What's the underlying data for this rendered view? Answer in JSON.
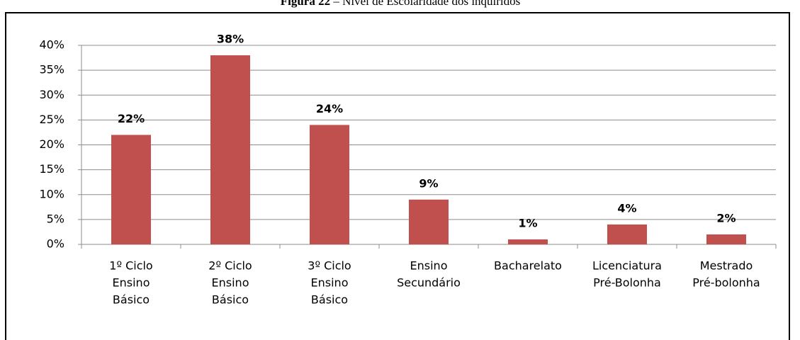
{
  "chart_data": {
    "type": "bar",
    "title": {
      "label": "Figura 22",
      "text": "– Nível de Escolaridade dos inquiridos"
    },
    "categories": [
      [
        "1º Ciclo",
        "Ensino",
        "Básico"
      ],
      [
        "2º Ciclo",
        "Ensino",
        "Básico"
      ],
      [
        "3º Ciclo",
        "Ensino",
        "Básico"
      ],
      [
        "Ensino",
        "Secundário"
      ],
      [
        "Bacharelato"
      ],
      [
        "Licenciatura",
        "Pré-Bolonha"
      ],
      [
        "Mestrado",
        "Pré-bolonha"
      ]
    ],
    "values": [
      22,
      38,
      24,
      9,
      1,
      4,
      2
    ],
    "value_labels": [
      "22%",
      "38%",
      "24%",
      "9%",
      "1%",
      "4%",
      "2%"
    ],
    "color": "#c0504d",
    "ylim": [
      0,
      40
    ],
    "yticks": [
      {
        "value": 0,
        "label": "0%"
      },
      {
        "value": 5,
        "label": "5%"
      },
      {
        "value": 10,
        "label": "10%"
      },
      {
        "value": 15,
        "label": "15%"
      },
      {
        "value": 20,
        "label": "20%"
      },
      {
        "value": 25,
        "label": "25%"
      },
      {
        "value": 30,
        "label": "30%"
      },
      {
        "value": 35,
        "label": "35%"
      },
      {
        "value": 40,
        "label": "40%"
      }
    ],
    "grid": true
  }
}
